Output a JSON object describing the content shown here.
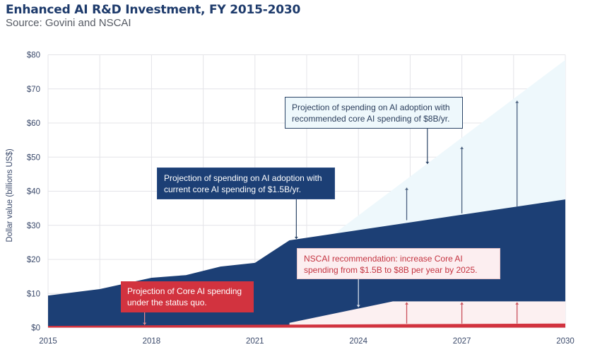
{
  "title": "Enhanced AI R&D Investment, FY 2015-2030",
  "subtitle": "Source: Govini and NSCAI",
  "colors": {
    "current_adoption": "#1c3f75",
    "recommended_adoption": "#eef8fc",
    "recommended_core_gap": "#fcf0f1",
    "status_quo_core": "#d2333f",
    "grid": "#e4e4e8",
    "axis_text": "#3b4a6b"
  },
  "chart_data": {
    "type": "area",
    "title": "Enhanced AI R&D Investment, FY 2015-2030",
    "subtitle": "Source: Govini and NSCAI",
    "xlabel": "",
    "ylabel": "Dollar value (billions US$)",
    "xlim": [
      2015,
      2030
    ],
    "ylim": [
      0,
      80
    ],
    "x_ticks": [
      "2015",
      "2018",
      "2021",
      "2024",
      "2027",
      "2030"
    ],
    "x_tick_values": [
      2015,
      2018,
      2021,
      2024,
      2027,
      2030
    ],
    "y_ticks": [
      "$0",
      "$10",
      "$20",
      "$30",
      "$40",
      "$50",
      "$60",
      "$70",
      "$80"
    ],
    "y_tick_values": [
      0,
      10,
      20,
      30,
      40,
      50,
      60,
      70,
      80
    ],
    "grid": true,
    "grid_x_step": 1.5,
    "series": [
      {
        "name": "Projection of spending on AI adoption with recommended core AI spending of $8B/yr.",
        "key": "recommended_adoption",
        "x": [
          2023.3,
          2030
        ],
        "values": [
          28.0,
          78.5
        ]
      },
      {
        "name": "Projection of spending on AI adoption with current core AI spending of $1.5B/yr.",
        "key": "current_adoption",
        "x": [
          2015,
          2016.5,
          2018,
          2019,
          2020,
          2021,
          2022,
          2030
        ],
        "values": [
          9.4,
          11.3,
          14.6,
          15.4,
          17.9,
          19.0,
          25.6,
          37.6
        ]
      },
      {
        "name": "NSCAI recommendation: increase Core AI spending from $1.5B to $8B per year by 2025.",
        "key": "recommended_core_gap",
        "x": [
          2022,
          2025,
          2030
        ],
        "values": [
          1.4,
          7.7,
          7.7
        ]
      },
      {
        "name": "Projection of Core AI spending under the status quo.",
        "key": "status_quo_core",
        "x": [
          2015,
          2020,
          2025,
          2030
        ],
        "values": [
          0.5,
          0.8,
          1.0,
          1.2
        ]
      }
    ],
    "arrows": [
      {
        "x": 2025.4,
        "from": 31.5,
        "to": 41.0,
        "series": "recommended_adoption"
      },
      {
        "x": 2027.0,
        "from": 33.5,
        "to": 53.0,
        "series": "recommended_adoption"
      },
      {
        "x": 2028.6,
        "from": 35.5,
        "to": 66.5,
        "series": "recommended_adoption"
      },
      {
        "x": 2025.4,
        "from": 1.2,
        "to": 7.4,
        "series": "recommended_core_gap"
      },
      {
        "x": 2027.0,
        "from": 1.2,
        "to": 7.4,
        "series": "recommended_core_gap"
      },
      {
        "x": 2028.6,
        "from": 1.2,
        "to": 7.4,
        "series": "recommended_core_gap"
      }
    ],
    "annotations": [
      {
        "key": "recommended",
        "text": "Projection of spending on AI adoption with recommended core AI spending of $8B/yr.",
        "line1": "Projection of spending on AI adoption with",
        "line2": "recommended core AI spending of $8B/yr.",
        "pointer_x": 2026.0,
        "pointer_to": 48.0
      },
      {
        "key": "current",
        "text": "Projection of spending on AI adoption with current core AI spending of $1.5B/yr.",
        "line1": "Projection of spending on AI adoption with",
        "line2": "current core AI spending of $1.5B/yr.",
        "pointer_x": 2022.2,
        "pointer_to": 26.0
      },
      {
        "key": "nscai",
        "text": "NSCAI recommendation: increase Core AI spending from $1.5B to $8B per year by 2025.",
        "line1": "NSCAI recommendation: increase Core AI",
        "line2": "spending from $1.5B to $8B per year by 2025.",
        "pointer_x": 2024.0,
        "pointer_to": 6.0
      },
      {
        "key": "statusquo",
        "text": "Projection of Core AI spending under the status quo.",
        "line1": "Projection of Core AI spending",
        "line2": "under the status quo.",
        "pointer_x": 2017.8,
        "pointer_to": 0.8
      }
    ]
  }
}
